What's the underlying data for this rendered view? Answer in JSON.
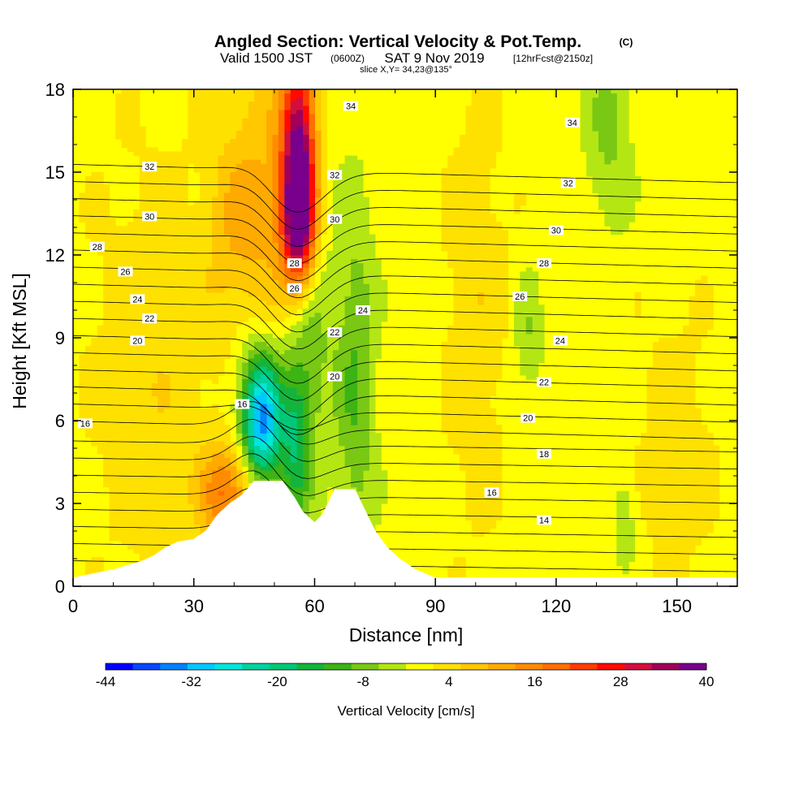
{
  "titles": {
    "main": "Angled Section: Vertical Velocity & Pot.Temp.",
    "main_units": "(C)",
    "valid_a": "Valid 1500 JST",
    "valid_b": "(0600Z)",
    "valid_c": "SAT 9 Nov 2019",
    "valid_d": "[12hrFcst@2150z]",
    "slice": "slice X,Y= 34,23@135°"
  },
  "chart_data": {
    "type": "heatmap",
    "xlabel": "Distance [nm]",
    "ylabel": "Height [Kft MSL]",
    "xlim": [
      0,
      165
    ],
    "ylim": [
      0,
      18
    ],
    "xticks": [
      "0",
      "30",
      "60",
      "90",
      "120",
      "150"
    ],
    "yticks": [
      "0",
      "3",
      "6",
      "9",
      "12",
      "15",
      "18"
    ],
    "colorbar": {
      "label": "Vertical Velocity [cm/s]",
      "tick_labels": [
        "-44",
        "-32",
        "-20",
        "-8",
        "4",
        "16",
        "28",
        "40"
      ],
      "levels": [
        -44,
        -40,
        -36,
        -32,
        -28,
        -24,
        -20,
        -16,
        -12,
        -8,
        -4,
        0,
        4,
        8,
        12,
        16,
        20,
        24,
        28,
        32,
        36,
        40
      ],
      "colors": [
        "#0000ff",
        "#0a46ff",
        "#0082ff",
        "#00c8ff",
        "#00e6dc",
        "#00d2a0",
        "#00c878",
        "#14b43c",
        "#3cb414",
        "#78c814",
        "#b4e614",
        "#ffff00",
        "#ffe100",
        "#ffc800",
        "#ffaa00",
        "#ff8c00",
        "#ff6e00",
        "#ff3c00",
        "#ff0a00",
        "#d20f3c",
        "#a0005a",
        "#78008c"
      ]
    },
    "terrain_kft": [
      [
        0,
        0.3
      ],
      [
        10,
        0.6
      ],
      [
        17,
        0.9
      ],
      [
        20,
        1.1
      ],
      [
        23,
        1.4
      ],
      [
        26,
        1.6
      ],
      [
        30,
        1.7
      ],
      [
        33,
        2.0
      ],
      [
        36,
        2.6
      ],
      [
        39,
        3.0
      ],
      [
        42,
        3.3
      ],
      [
        45,
        3.8
      ],
      [
        52,
        3.8
      ],
      [
        55,
        3.2
      ],
      [
        57,
        2.7
      ],
      [
        60,
        2.3
      ],
      [
        62,
        2.6
      ],
      [
        65,
        3.5
      ],
      [
        70,
        3.5
      ],
      [
        72,
        2.9
      ],
      [
        75,
        2.0
      ],
      [
        78,
        1.4
      ],
      [
        81,
        1.0
      ],
      [
        85,
        0.6
      ],
      [
        90,
        0.3
      ],
      [
        165,
        0.3
      ]
    ],
    "wind_features": [
      {
        "x": 56,
        "z": 15.5,
        "sx": 3,
        "sz": 2.8,
        "w": 40
      },
      {
        "x": 56,
        "z": 13.0,
        "sx": 3,
        "sz": 1.6,
        "w": 24
      },
      {
        "x": 48,
        "z": 12.0,
        "sx": 5,
        "sz": 6.0,
        "w": 9
      },
      {
        "x": 47,
        "z": 6.0,
        "sx": 3.2,
        "sz": 1.6,
        "w": -30
      },
      {
        "x": 46,
        "z": 6.5,
        "sx": 5,
        "sz": 3.0,
        "w": -12
      },
      {
        "x": 58,
        "z": 9.0,
        "sx": 4,
        "sz": 3.5,
        "w": -10
      },
      {
        "x": 70,
        "z": 7.5,
        "sx": 3.5,
        "sz": 4.5,
        "w": -10
      },
      {
        "x": 55,
        "z": 5.0,
        "sx": 2.5,
        "sz": 2.0,
        "w": -14
      },
      {
        "x": 37,
        "z": 3.3,
        "sx": 4,
        "sz": 1.3,
        "w": 16
      },
      {
        "x": 43,
        "z": 3.8,
        "sx": 4,
        "sz": 1.0,
        "w": 8
      },
      {
        "x": 40,
        "z": 13.0,
        "sx": 5,
        "sz": 3.0,
        "w": 8
      },
      {
        "x": 113,
        "z": 9.0,
        "sx": 2.5,
        "sz": 1.6,
        "w": -6
      },
      {
        "x": 133,
        "z": 16.5,
        "sx": 4,
        "sz": 2.5,
        "w": -7
      },
      {
        "x": 137,
        "z": 2.4,
        "sx": 2,
        "sz": 1.2,
        "w": -6
      },
      {
        "x": 100,
        "z": 10.0,
        "sx": 6,
        "sz": 6.0,
        "w": 5
      },
      {
        "x": 20,
        "z": 8.0,
        "sx": 12,
        "sz": 6.0,
        "w": 5
      },
      {
        "x": 150,
        "z": 5.0,
        "sx": 8,
        "sz": 4.0,
        "w": 4
      }
    ],
    "contour_labels": [
      {
        "text": "34",
        "x": 69,
        "z": 17.4
      },
      {
        "text": "34",
        "x": 124,
        "z": 16.8
      },
      {
        "text": "32",
        "x": 19,
        "z": 15.2
      },
      {
        "text": "32",
        "x": 65,
        "z": 14.9
      },
      {
        "text": "32",
        "x": 123,
        "z": 14.6
      },
      {
        "text": "30",
        "x": 19,
        "z": 13.4
      },
      {
        "text": "30",
        "x": 65,
        "z": 13.3
      },
      {
        "text": "30",
        "x": 120,
        "z": 12.9
      },
      {
        "text": "28",
        "x": 6,
        "z": 12.3
      },
      {
        "text": "28",
        "x": 55,
        "z": 11.7
      },
      {
        "text": "28",
        "x": 117,
        "z": 11.7
      },
      {
        "text": "26",
        "x": 13,
        "z": 11.4
      },
      {
        "text": "26",
        "x": 55,
        "z": 10.8
      },
      {
        "text": "26",
        "x": 111,
        "z": 10.5
      },
      {
        "text": "24",
        "x": 16,
        "z": 10.4
      },
      {
        "text": "24",
        "x": 72,
        "z": 10.0
      },
      {
        "text": "24",
        "x": 121,
        "z": 8.9
      },
      {
        "text": "22",
        "x": 19,
        "z": 9.7
      },
      {
        "text": "22",
        "x": 65,
        "z": 9.2
      },
      {
        "text": "22",
        "x": 117,
        "z": 7.4
      },
      {
        "text": "20",
        "x": 16,
        "z": 8.9
      },
      {
        "text": "20",
        "x": 65,
        "z": 7.6
      },
      {
        "text": "20",
        "x": 113,
        "z": 6.1
      },
      {
        "text": "18",
        "x": 117,
        "z": 4.8
      },
      {
        "text": "16",
        "x": 42,
        "z": 6.6
      },
      {
        "text": "16",
        "x": 3,
        "z": 5.9
      },
      {
        "text": "16",
        "x": 104,
        "z": 3.4
      },
      {
        "text": "14",
        "x": 117,
        "z": 2.4
      }
    ]
  }
}
